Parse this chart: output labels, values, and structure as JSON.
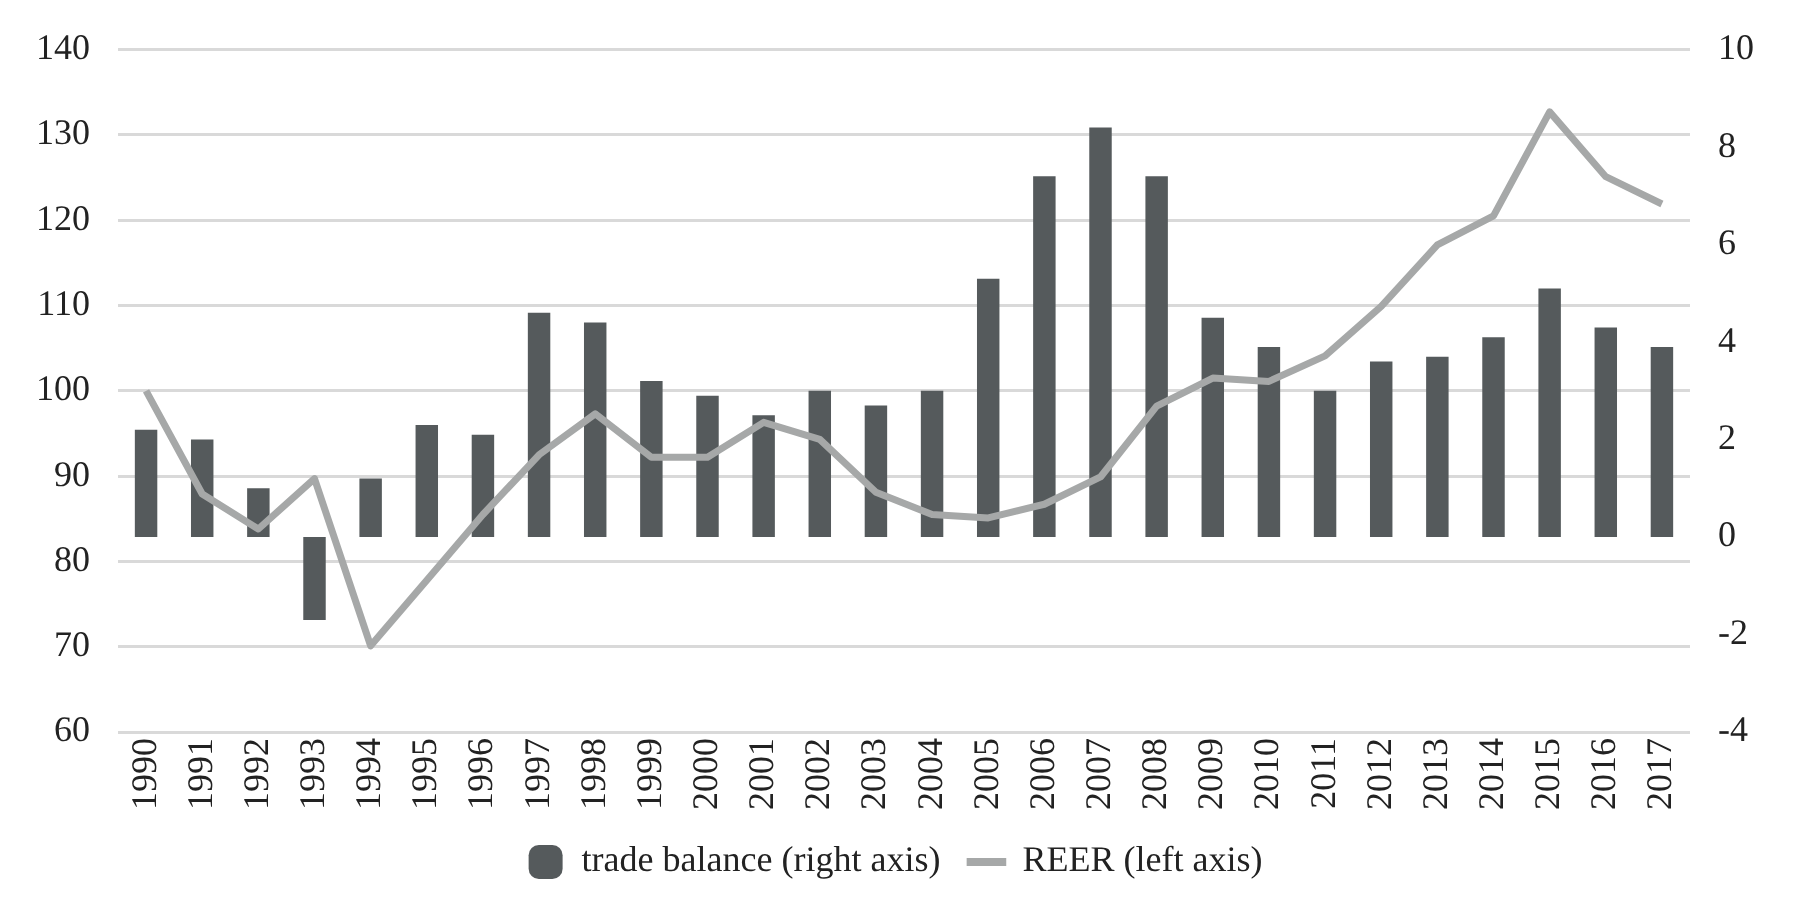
{
  "chart_data": {
    "type": "bar",
    "categories": [
      "1990",
      "1991",
      "1992",
      "1993",
      "1994",
      "1995",
      "1996",
      "1997",
      "1998",
      "1999",
      "2000",
      "2001",
      "2002",
      "2003",
      "2004",
      "2005",
      "2006",
      "2007",
      "2008",
      "2009",
      "2010",
      "2011",
      "2012",
      "2013",
      "2014",
      "2015",
      "2016",
      "2017"
    ],
    "series": [
      {
        "name": "trade balance (right axis)",
        "axis": "y2",
        "color": "#555a5c",
        "values": [
          2.2,
          2.0,
          1.0,
          -1.7,
          1.2,
          2.3,
          2.1,
          4.6,
          4.4,
          3.2,
          2.9,
          2.5,
          3.0,
          2.7,
          3.0,
          5.3,
          7.4,
          8.4,
          7.4,
          4.5,
          3.9,
          3.0,
          3.6,
          3.7,
          4.1,
          5.1,
          4.3,
          3.9
        ]
      },
      {
        "name": "REER (left axis)",
        "type": "line",
        "color": "#a6a8a8",
        "values": [
          100,
          87.9,
          83.8,
          89.7,
          70.1,
          77.8,
          85.5,
          92.5,
          97.3,
          92.2,
          92.2,
          96.3,
          94.3,
          88.1,
          85.5,
          85.1,
          86.7,
          89.9,
          98.2,
          101.5,
          101.1,
          104.1,
          109.9,
          117.1,
          120.5,
          132.7,
          125.1,
          121.9
        ]
      }
    ],
    "ylim": [
      60,
      140
    ],
    "yticks": [
      60,
      70,
      80,
      90,
      100,
      110,
      120,
      130,
      140
    ],
    "y2lim": [
      -4,
      10
    ],
    "y2ticks": [
      -4,
      -2,
      0,
      2,
      4,
      6,
      8,
      10
    ],
    "grid": "y",
    "legend": "bottom",
    "marker": "none",
    "line_style": "solid"
  }
}
